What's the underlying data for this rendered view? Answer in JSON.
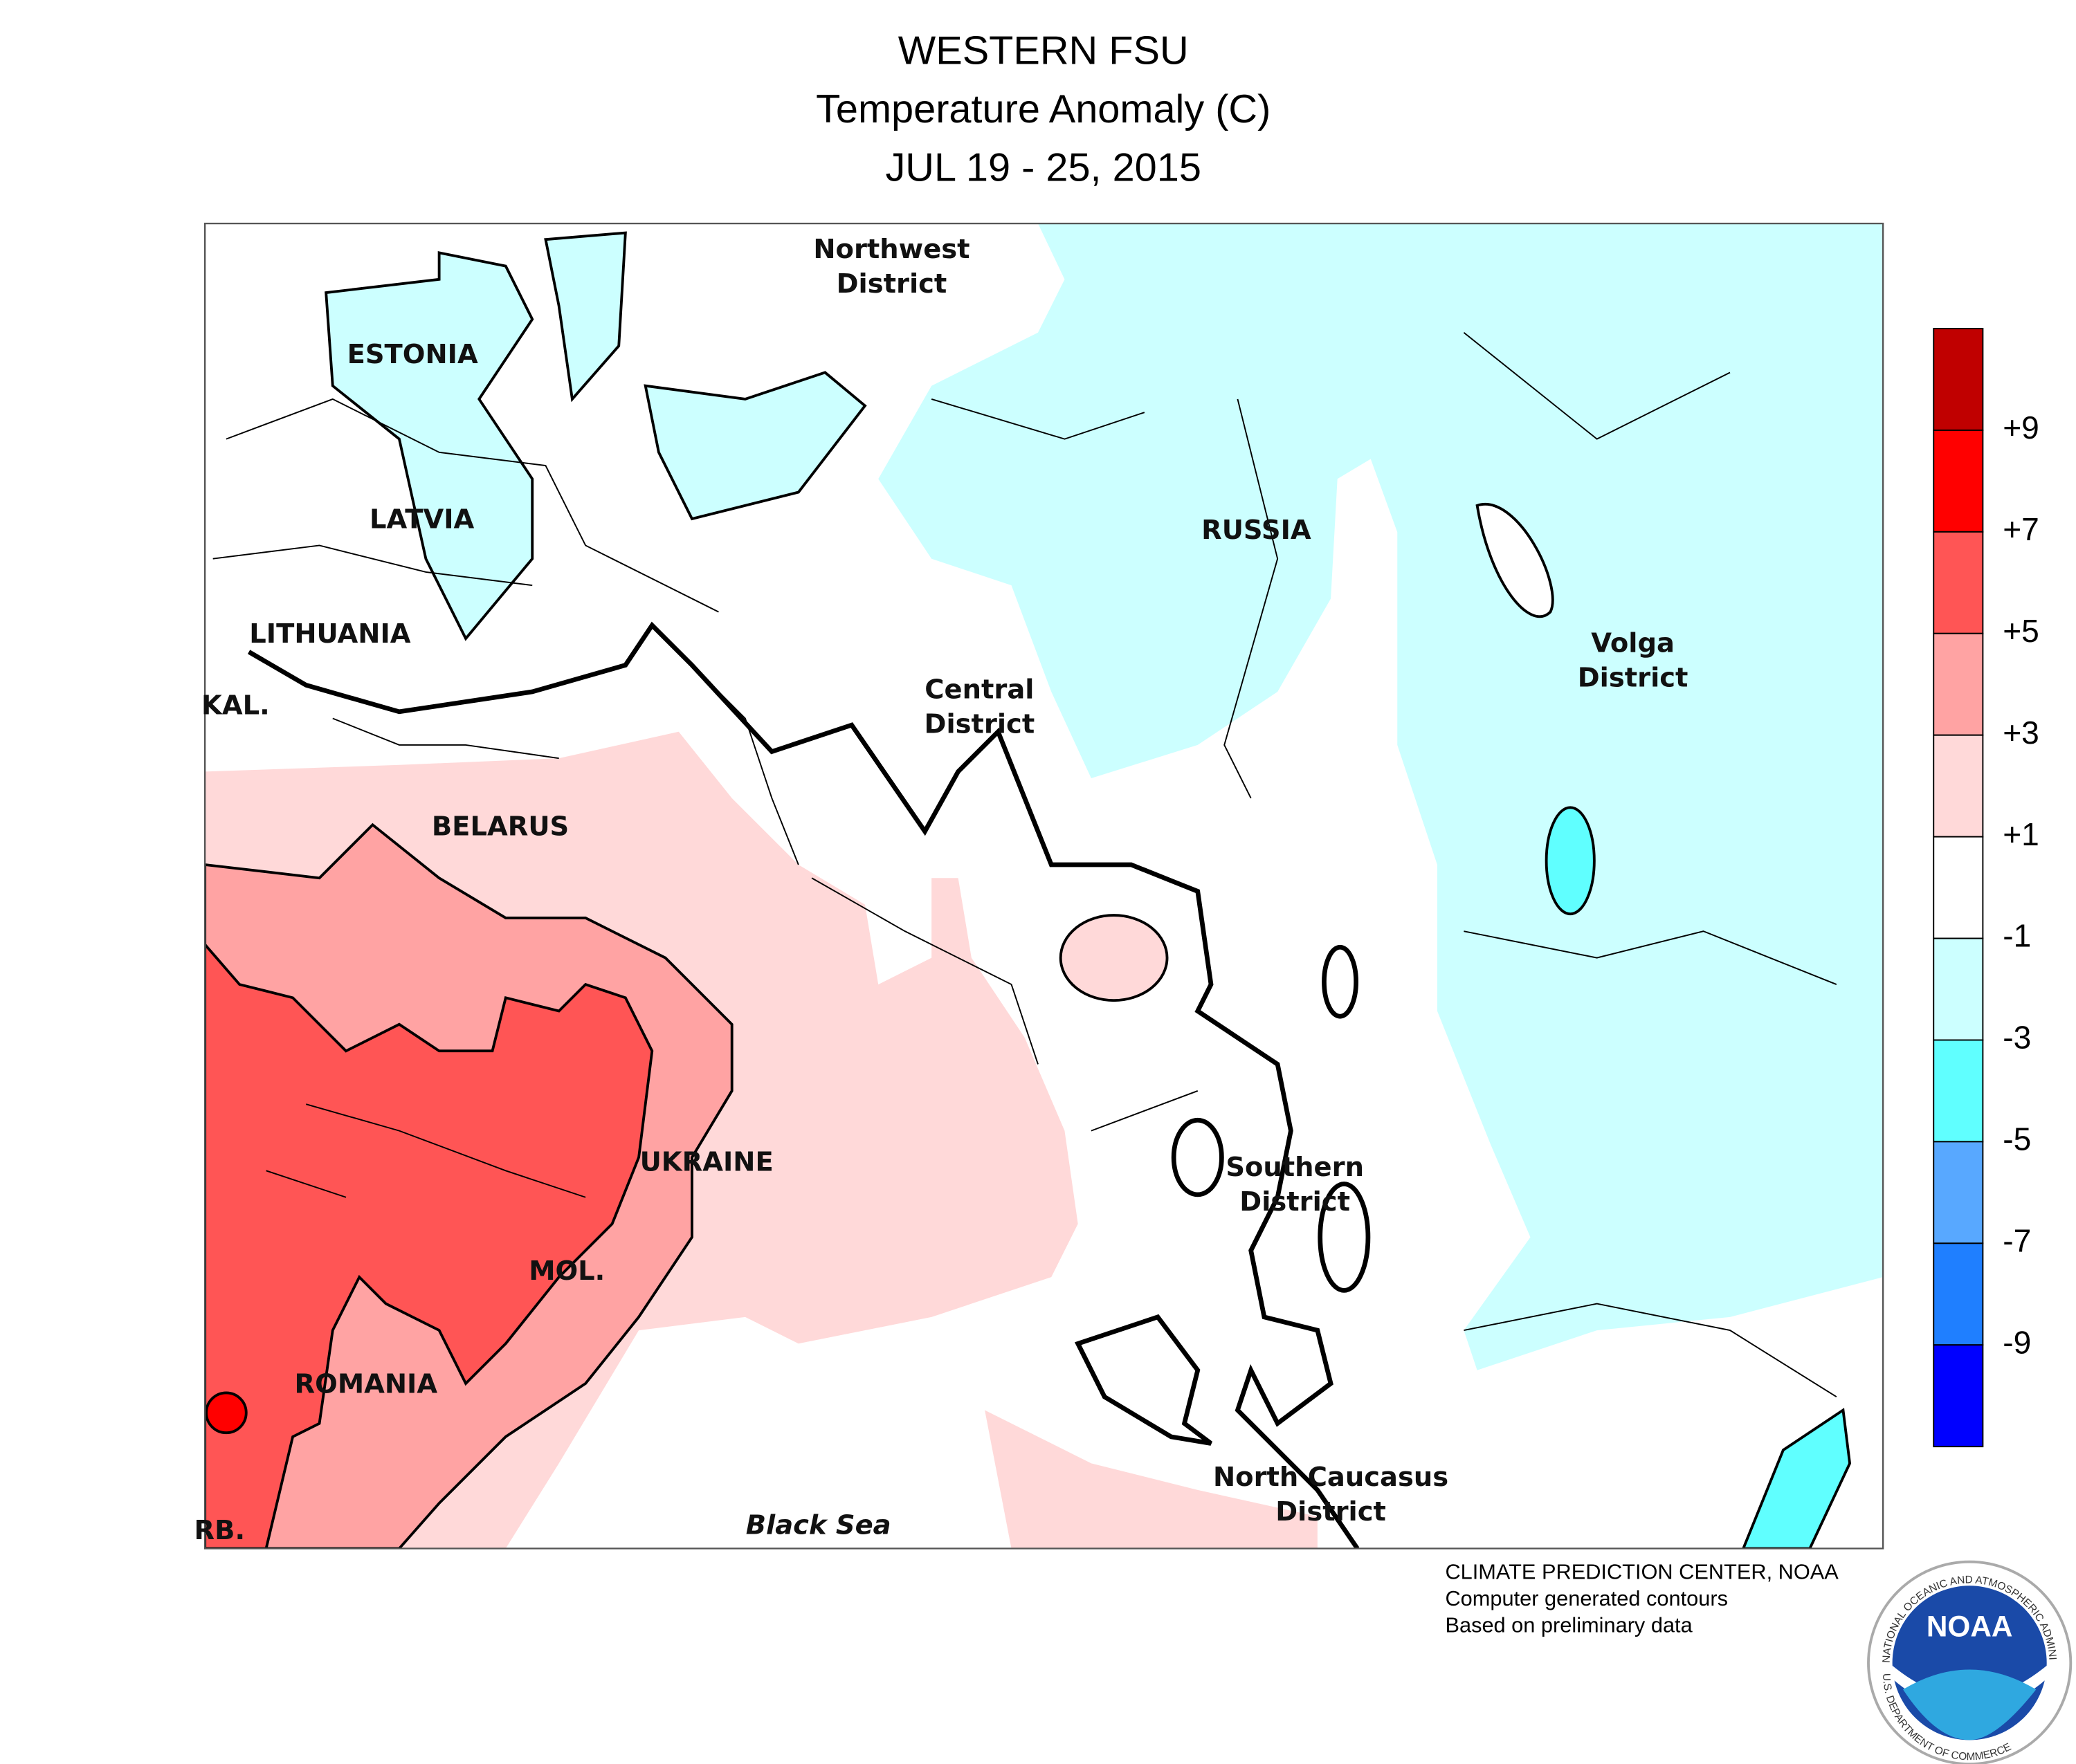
{
  "header": {
    "title": "WESTERN FSU",
    "subtitle": "Temperature Anomaly (C)",
    "date": "JUL 19 - 25, 2015"
  },
  "legend": {
    "colors": [
      "#c00000",
      "#ff0000",
      "#ff5555",
      "#ffa3a3",
      "#ffd9d9",
      "#ffffff",
      "#ccffff",
      "#60ffff",
      "#58a8ff",
      "#1f7fff",
      "#0000ff"
    ],
    "labels": [
      "+9",
      "+7",
      "+5",
      "+3",
      "+1",
      "-1",
      "-3",
      "-5",
      "-7",
      "-9"
    ]
  },
  "map_labels": [
    {
      "lines": [
        "Northwest",
        "District"
      ]
    },
    {
      "lines": [
        "ESTONIA"
      ]
    },
    {
      "lines": [
        "LATVIA"
      ]
    },
    {
      "lines": [
        "LITHUANIA"
      ]
    },
    {
      "lines": [
        "KAL."
      ]
    },
    {
      "lines": [
        "BELARUS"
      ]
    },
    {
      "lines": [
        "RUSSIA"
      ]
    },
    {
      "lines": [
        "Central",
        "District"
      ]
    },
    {
      "lines": [
        "Volga",
        "District"
      ]
    },
    {
      "lines": [
        "UKRAINE"
      ]
    },
    {
      "lines": [
        "Southern",
        "District"
      ]
    },
    {
      "lines": [
        "MOL."
      ]
    },
    {
      "lines": [
        "ROMANIA"
      ]
    },
    {
      "lines": [
        "North Caucasus",
        "District"
      ]
    },
    {
      "lines": [
        "RB."
      ]
    },
    {
      "lines": [
        "Black Sea"
      ]
    }
  ],
  "footer": [
    "CLIMATE PREDICTION CENTER, NOAA",
    "Computer generated contours",
    "Based on preliminary data"
  ],
  "logo": {
    "text": "NOAA",
    "ring_top": "NATIONAL OCEANIC AND ATMOSPHERIC ADMINISTRATION",
    "ring_bottom": "U.S. DEPARTMENT OF COMMERCE"
  }
}
